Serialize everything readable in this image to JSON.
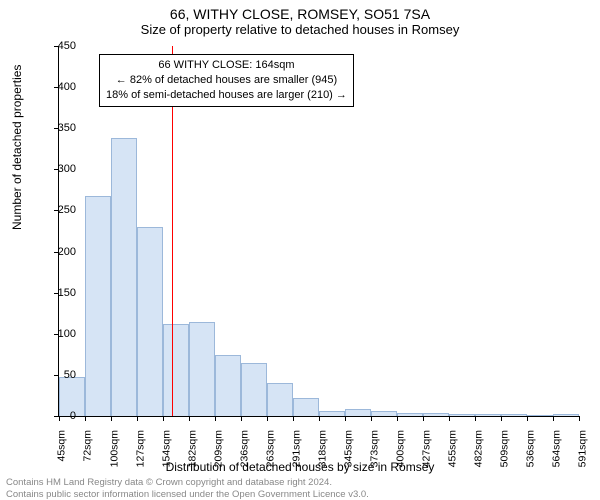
{
  "header": {
    "title": "66, WITHY CLOSE, ROMSEY, SO51 7SA",
    "subtitle": "Size of property relative to detached houses in Romsey"
  },
  "chart": {
    "type": "histogram",
    "background_color": "#ffffff",
    "bar_fill": "#d6e4f5",
    "bar_stroke": "#9cb8da",
    "bar_stroke_width": 1,
    "marker_line_color": "#ff0000",
    "marker_value": 164,
    "annotation": {
      "line1": "66 WITHY CLOSE: 164sqm",
      "line2": "← 82% of detached houses are smaller (945)",
      "line3": "18% of semi-detached houses are larger (210) →"
    },
    "y_axis": {
      "label": "Number of detached properties",
      "min": 0,
      "max": 450,
      "tick_step": 50,
      "ticks": [
        0,
        50,
        100,
        150,
        200,
        250,
        300,
        350,
        400,
        450
      ],
      "label_fontsize": 12,
      "tick_fontsize": 11
    },
    "x_axis": {
      "label": "Distribution of detached houses by size in Romsey",
      "bin_start": 45,
      "bin_width": 27.3,
      "tick_labels": [
        "45sqm",
        "72sqm",
        "100sqm",
        "127sqm",
        "154sqm",
        "182sqm",
        "209sqm",
        "236sqm",
        "263sqm",
        "291sqm",
        "318sqm",
        "345sqm",
        "373sqm",
        "400sqm",
        "427sqm",
        "455sqm",
        "482sqm",
        "509sqm",
        "536sqm",
        "564sqm",
        "591sqm"
      ],
      "label_fontsize": 12,
      "tick_fontsize": 10.5
    },
    "bins": [
      48,
      268,
      338,
      230,
      112,
      114,
      74,
      64,
      40,
      22,
      6,
      8,
      6,
      4,
      4,
      2,
      2,
      2,
      0,
      2
    ]
  },
  "footer": {
    "line1": "Contains HM Land Registry data © Crown copyright and database right 2024.",
    "line2": "Contains public sector information licensed under the Open Government Licence v3.0."
  }
}
